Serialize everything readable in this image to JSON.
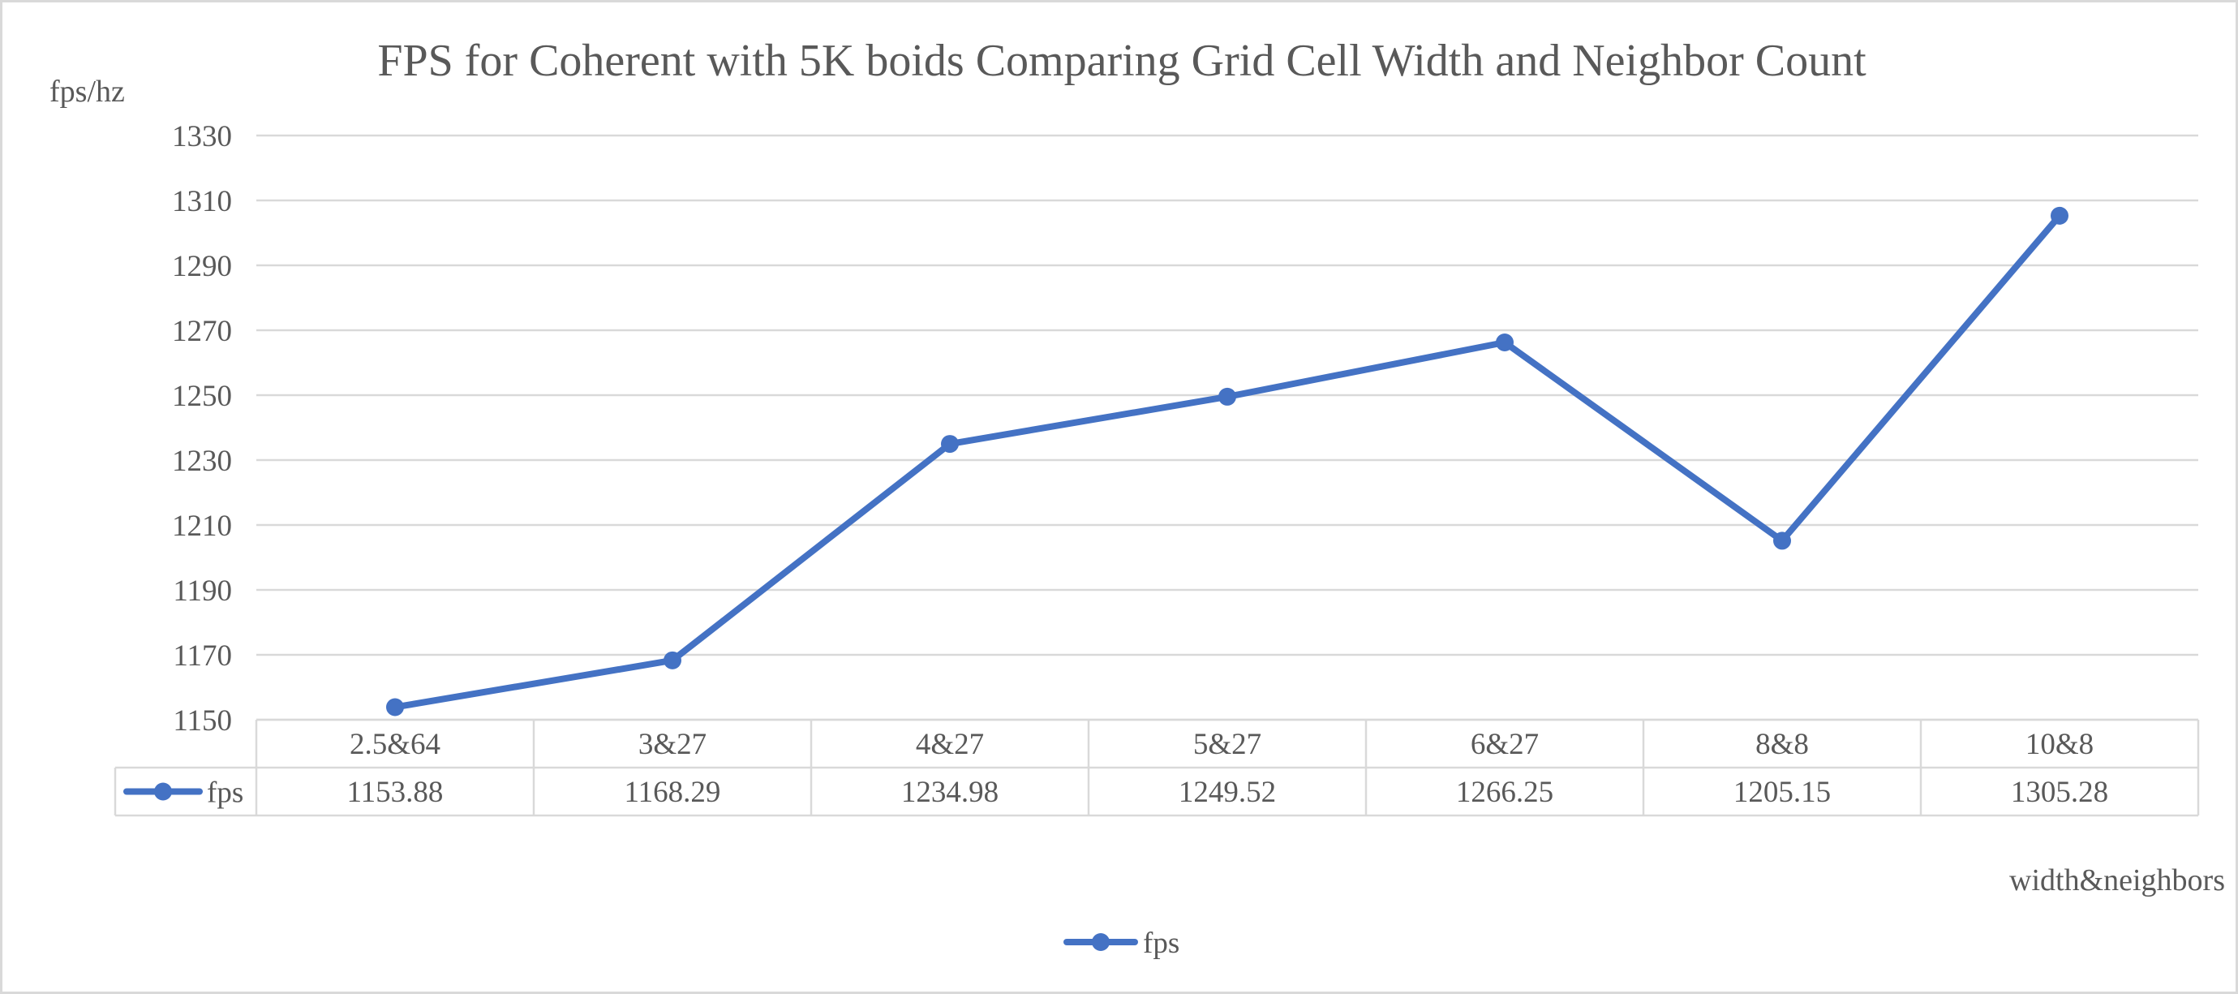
{
  "chart_data": {
    "type": "line",
    "title": "FPS for Coherent with 5K boids Comparing Grid Cell Width and Neighbor Count",
    "ylabel": "fps/hz",
    "xlabel": "width&neighbors",
    "categories": [
      "2.5&64",
      "3&27",
      "4&27",
      "5&27",
      "6&27",
      "8&8",
      "10&8"
    ],
    "series": [
      {
        "name": "fps",
        "values": [
          1153.88,
          1168.29,
          1234.98,
          1249.52,
          1266.25,
          1205.15,
          1305.28
        ]
      }
    ],
    "value_labels": [
      "1153.88",
      "1168.29",
      "1234.98",
      "1249.52",
      "1266.25",
      "1205.15",
      "1305.28"
    ],
    "ylim": [
      1150,
      1330
    ],
    "yticks": [
      "1150",
      "1170",
      "1190",
      "1210",
      "1230",
      "1250",
      "1270",
      "1290",
      "1310",
      "1330"
    ],
    "grid": true,
    "data_table": true,
    "legend": {
      "position": "bottom",
      "entries": [
        "fps"
      ]
    },
    "colors": {
      "series": "#4472c4",
      "grid": "#d9d9d9",
      "text": "#595959"
    }
  }
}
